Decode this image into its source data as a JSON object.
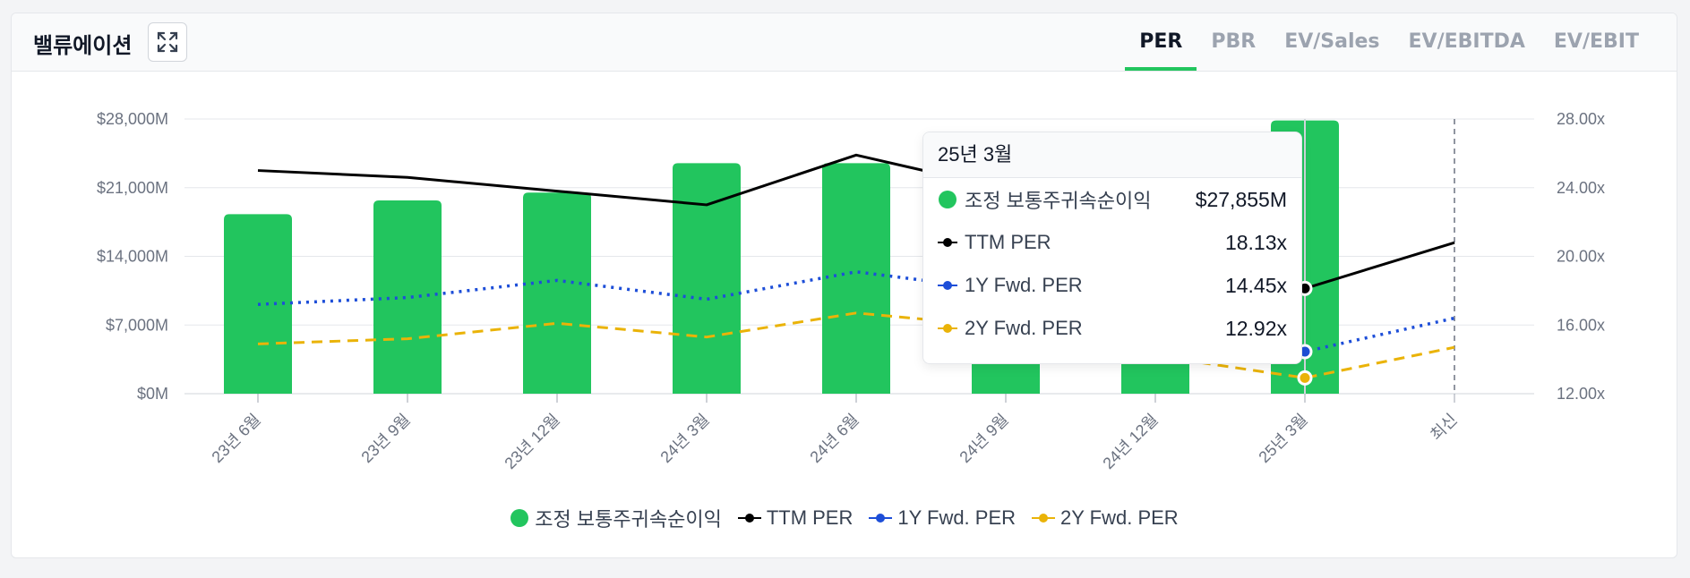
{
  "header": {
    "title": "밸류에이션",
    "tabs": [
      {
        "label": "PER",
        "active": true
      },
      {
        "label": "PBR",
        "active": false
      },
      {
        "label": "EV/Sales",
        "active": false
      },
      {
        "label": "EV/EBITDA",
        "active": false
      },
      {
        "label": "EV/EBIT",
        "active": false
      }
    ]
  },
  "colors": {
    "bar": "#22c55e",
    "ttm": "#000000",
    "fwd1": "#1d4ed8",
    "fwd2": "#eab308",
    "accent": "#22c55e"
  },
  "chart_data": {
    "type": "bar",
    "categories": [
      "23년 6월",
      "23년 9월",
      "23년 12월",
      "24년 3월",
      "24년 6월",
      "24년 9월",
      "24년 12월",
      "25년 3월",
      "최신"
    ],
    "y_left": {
      "min": 0,
      "max": 28000,
      "ticks": [
        "$0M",
        "$7,000M",
        "$14,000M",
        "$21,000M",
        "$28,000M"
      ],
      "tick_values": [
        0,
        7000,
        14000,
        21000,
        28000
      ]
    },
    "y_right": {
      "min": 12,
      "max": 28,
      "ticks": [
        "12.00x",
        "16.00x",
        "20.00x",
        "24.00x",
        "28.00x"
      ],
      "tick_values": [
        12,
        16,
        20,
        24,
        28
      ]
    },
    "grid": true,
    "legend_position": "bottom",
    "series": [
      {
        "name": "조정 보통주귀속순이익",
        "kind": "bar",
        "axis": "left",
        "values": [
          18300,
          19700,
          20500,
          23500,
          23500,
          22500,
          23500,
          27855,
          null
        ]
      },
      {
        "name": "TTM PER",
        "kind": "line",
        "axis": "right",
        "dash": "solid",
        "values": [
          25.0,
          24.6,
          23.8,
          23.0,
          25.9,
          23.9,
          20.1,
          18.13,
          20.8
        ]
      },
      {
        "name": "1Y Fwd. PER",
        "kind": "line",
        "axis": "right",
        "dash": "dotted",
        "values": [
          17.2,
          17.6,
          18.6,
          17.5,
          19.1,
          18.0,
          16.2,
          14.45,
          16.4
        ]
      },
      {
        "name": "2Y Fwd. PER",
        "kind": "line",
        "axis": "right",
        "dash": "dashed",
        "values": [
          14.9,
          15.2,
          16.1,
          15.3,
          16.7,
          15.9,
          14.2,
          12.92,
          14.7
        ]
      }
    ],
    "highlight_index": 7,
    "latest_index": 8
  },
  "tooltip": {
    "title": "25년 3월",
    "rows": [
      {
        "name": "조정 보통주귀속순이익",
        "value": "$27,855M"
      },
      {
        "name": "TTM PER",
        "value": "18.13x"
      },
      {
        "name": "1Y Fwd. PER",
        "value": "14.45x"
      },
      {
        "name": "2Y Fwd. PER",
        "value": "12.92x"
      }
    ]
  }
}
